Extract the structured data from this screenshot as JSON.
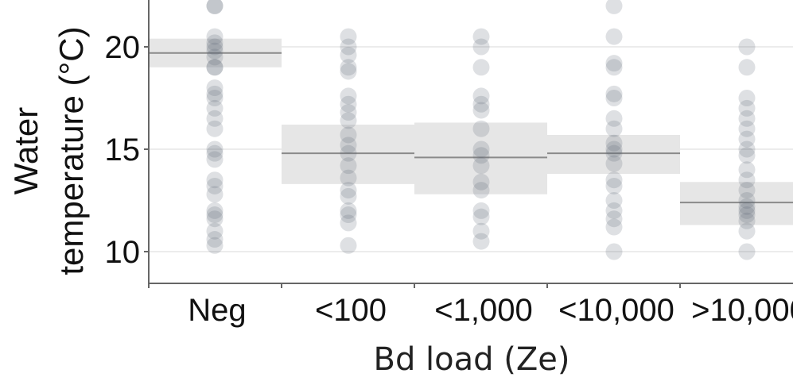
{
  "chart_data": {
    "type": "scatter",
    "title": "",
    "xlabel": "Bd load (Ze)",
    "ylabel_lines": [
      "Water",
      "temperature (°C)"
    ],
    "categories": [
      "Neg",
      "<100",
      "<1,000",
      "<10,000",
      ">10,000"
    ],
    "yticks": [
      "10",
      "15",
      "20"
    ],
    "ylim": [
      8.5,
      22.4
    ],
    "grid": true,
    "summary": [
      {
        "category": "Neg",
        "mean": 19.7,
        "low": 19.0,
        "high": 20.4
      },
      {
        "category": "<100",
        "mean": 14.8,
        "low": 13.3,
        "high": 16.2
      },
      {
        "category": "<1,000",
        "mean": 14.6,
        "low": 12.8,
        "high": 16.3
      },
      {
        "category": "<10,000",
        "mean": 14.8,
        "low": 13.8,
        "high": 15.7
      },
      {
        "category": ">10,000",
        "mean": 12.4,
        "low": 11.3,
        "high": 13.4
      }
    ],
    "points": {
      "Neg": [
        22.0,
        22.0,
        20.5,
        20.2,
        20.0,
        19.8,
        19.5,
        19.0,
        19.0,
        18.0,
        17.7,
        17.5,
        17.0,
        16.5,
        16.0,
        15.0,
        14.8,
        14.5,
        13.5,
        13.2,
        12.8,
        12.0,
        11.8,
        11.6,
        11.0,
        10.6,
        10.3
      ],
      "<100": [
        20.5,
        20.0,
        19.6,
        19.0,
        18.8,
        17.6,
        17.2,
        16.8,
        16.4,
        15.7,
        15.2,
        14.8,
        14.2,
        13.6,
        13.0,
        12.7,
        12.0,
        11.8,
        11.4,
        10.3
      ],
      "<1,000": [
        20.5,
        20.0,
        19.0,
        17.6,
        17.2,
        16.9,
        16.0,
        15.0,
        14.7,
        14.2,
        13.4,
        13.0,
        12.0,
        11.7,
        11.0,
        10.5
      ],
      "<10,000": [
        22.0,
        20.5,
        19.2,
        19.0,
        17.7,
        17.5,
        16.5,
        16.0,
        15.3,
        15.0,
        14.8,
        14.3,
        13.5,
        13.2,
        12.5,
        12.0,
        11.6,
        11.2,
        10.0
      ],
      ">10,000": [
        20.0,
        19.0,
        17.5,
        17.0,
        16.5,
        16.0,
        15.5,
        15.0,
        14.7,
        14.0,
        13.5,
        13.0,
        12.5,
        12.2,
        12.0,
        11.8,
        11.5,
        11.0,
        10.0
      ]
    },
    "colors": {
      "point": "#5b6673",
      "band": "#e6e6e6",
      "mean_line": "#8a8a8a",
      "grid": "#ececec",
      "axis": "#666666"
    }
  }
}
